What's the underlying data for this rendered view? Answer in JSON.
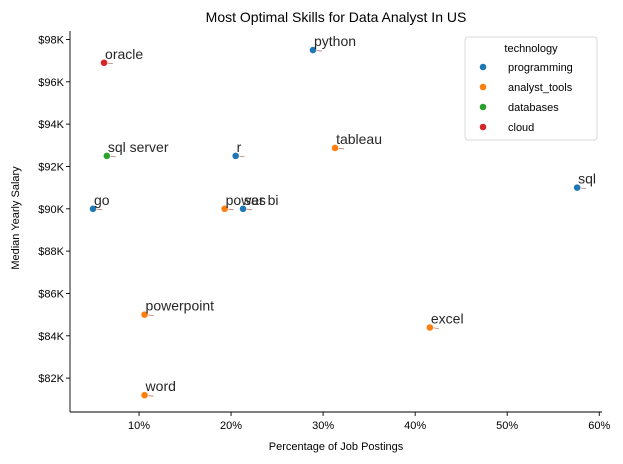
{
  "chart_data": {
    "type": "scatter",
    "title": "Most Optimal Skills for Data Analyst In US",
    "xlabel": "Percentage of Job Postings",
    "ylabel": "Median Yearly Salary",
    "xlim": [
      2.5,
      60.3
    ],
    "ylim": [
      80400,
      98400
    ],
    "x_ticks": [
      10,
      20,
      30,
      40,
      50,
      60
    ],
    "x_tick_labels": [
      "10%",
      "20%",
      "30%",
      "40%",
      "50%",
      "60%"
    ],
    "y_ticks": [
      82000,
      84000,
      86000,
      88000,
      90000,
      92000,
      94000,
      96000,
      98000
    ],
    "y_tick_labels": [
      "$82K",
      "$84K",
      "$86K",
      "$88K",
      "$90K",
      "$92K",
      "$94K",
      "$96K",
      "$98K"
    ],
    "grid": false,
    "legend": {
      "title": "technology",
      "placement": "top-right",
      "entries": [
        {
          "name": "programming",
          "color": "#1f77b4"
        },
        {
          "name": "analyst_tools",
          "color": "#ff7f0e"
        },
        {
          "name": "databases",
          "color": "#2ca02c"
        },
        {
          "name": "cloud",
          "color": "#d62728"
        }
      ]
    },
    "points": [
      {
        "label": "python",
        "x": 28.9,
        "y": 97500,
        "technology": "programming"
      },
      {
        "label": "oracle",
        "x": 6.2,
        "y": 96900,
        "technology": "cloud"
      },
      {
        "label": "tableau",
        "x": 31.3,
        "y": 92875,
        "technology": "analyst_tools"
      },
      {
        "label": "sql server",
        "x": 6.5,
        "y": 92500,
        "technology": "databases"
      },
      {
        "label": "r",
        "x": 20.5,
        "y": 92500,
        "technology": "programming"
      },
      {
        "label": "sql",
        "x": 57.6,
        "y": 91000,
        "technology": "programming"
      },
      {
        "label": "go",
        "x": 5.0,
        "y": 90000,
        "technology": "programming"
      },
      {
        "label": "power bi",
        "x": 19.3,
        "y": 90000,
        "technology": "analyst_tools"
      },
      {
        "label": "sas",
        "x": 21.3,
        "y": 90000,
        "technology": "programming"
      },
      {
        "label": "powerpoint",
        "x": 10.6,
        "y": 85000,
        "technology": "analyst_tools"
      },
      {
        "label": "excel",
        "x": 41.6,
        "y": 84392,
        "technology": "analyst_tools"
      },
      {
        "label": "word",
        "x": 10.6,
        "y": 81194,
        "technology": "analyst_tools"
      }
    ]
  }
}
